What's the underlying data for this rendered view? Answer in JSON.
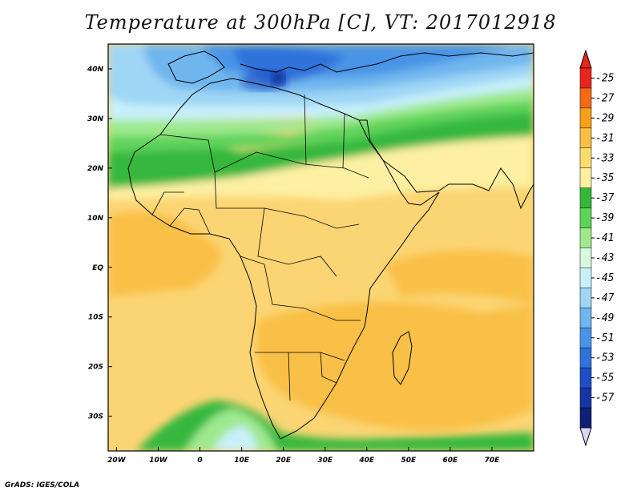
{
  "title": "Temperature at 300hPa [C], VT: 2017012918",
  "credit": "GrADS: IGES/COLA",
  "map": {
    "lon_range": [
      -22,
      80
    ],
    "lat_range": [
      -37,
      45
    ],
    "lat_labels": [
      {
        "lat": 40,
        "text": "40N"
      },
      {
        "lat": 30,
        "text": "30N"
      },
      {
        "lat": 20,
        "text": "20N"
      },
      {
        "lat": 10,
        "text": "10N"
      },
      {
        "lat": 0,
        "text": "EQ"
      },
      {
        "lat": -10,
        "text": "10S"
      },
      {
        "lat": -20,
        "text": "20S"
      },
      {
        "lat": -30,
        "text": "30S"
      }
    ],
    "lon_labels": [
      {
        "lon": -20,
        "text": "20W"
      },
      {
        "lon": -10,
        "text": "10W"
      },
      {
        "lon": 0,
        "text": "0"
      },
      {
        "lon": 10,
        "text": "10E"
      },
      {
        "lon": 20,
        "text": "20E"
      },
      {
        "lon": 30,
        "text": "30E"
      },
      {
        "lon": 40,
        "text": "40E"
      },
      {
        "lon": 50,
        "text": "50E"
      },
      {
        "lon": 60,
        "text": "60E"
      },
      {
        "lon": 70,
        "text": "70E"
      }
    ]
  },
  "colorbar": {
    "levels": [
      "-25",
      "-27",
      "-29",
      "-31",
      "-33",
      "-35",
      "-37",
      "-39",
      "-41",
      "-43",
      "-45",
      "-47",
      "-49",
      "-51",
      "-53",
      "-55",
      "-57"
    ],
    "colors": [
      "#e8241c",
      "#f36a13",
      "#f7a018",
      "#f9c046",
      "#fbdc6e",
      "#fdf0a2",
      "#34b83c",
      "#5ed35a",
      "#9ee98e",
      "#d8f8dc",
      "#c8f0fa",
      "#9fd6f6",
      "#6fb6ee",
      "#4a94e6",
      "#2f72da",
      "#1f4ec6",
      "#1736a6",
      "#0f1f78"
    ],
    "top_color": "#e8241c",
    "bottom_color": "#d8d8f6"
  }
}
